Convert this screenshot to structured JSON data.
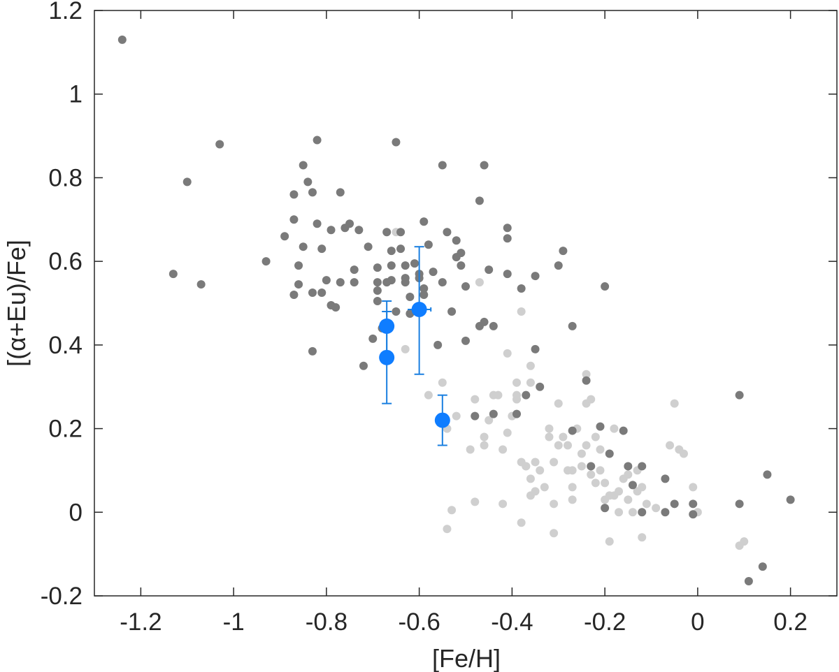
{
  "chart_data": {
    "type": "scatter",
    "xlabel": "[Fe/H]",
    "ylabel": "[(α+Eu)/Fe]",
    "xlim": [
      -1.3,
      0.3
    ],
    "ylim": [
      -0.2,
      1.2
    ],
    "x_ticks": [
      -1.2,
      -1,
      -0.8,
      -0.6,
      -0.4,
      -0.2,
      0,
      0.2
    ],
    "x_tick_labels": [
      "-1.2",
      "-1",
      "-0.8",
      "-0.6",
      "-0.4",
      "-0.2",
      "0",
      "0.2"
    ],
    "y_ticks": [
      -0.2,
      0,
      0.2,
      0.4,
      0.6,
      0.8,
      1,
      1.2
    ],
    "y_tick_labels": [
      "-0.2",
      "0",
      "0.2",
      "0.4",
      "0.6",
      "0.8",
      "1",
      "1.2"
    ],
    "grid": false,
    "colors": {
      "dark_points": "#7a7a7a",
      "light_points": "#cfcfcf",
      "highlight": "#0f7dff",
      "errorbar": "#1a7fe0",
      "axis": "#262626"
    },
    "series": [
      {
        "color": "#7a7a7a",
        "x": [
          -1.24,
          -1.13,
          -1.1,
          -1.07,
          -1.03,
          -0.93,
          -0.89,
          -0.87,
          -0.87,
          -0.87,
          -0.86,
          -0.86,
          -0.85,
          -0.85,
          -0.84,
          -0.83,
          -0.83,
          -0.83,
          -0.82,
          -0.82,
          -0.81,
          -0.81,
          -0.8,
          -0.79,
          -0.79,
          -0.78,
          -0.77,
          -0.77,
          -0.76,
          -0.75,
          -0.74,
          -0.74,
          -0.73,
          -0.72,
          -0.71,
          -0.7,
          -0.69,
          -0.69,
          -0.69,
          -0.69,
          -0.68,
          -0.67,
          -0.67,
          -0.66,
          -0.66,
          -0.66,
          -0.65,
          -0.65,
          -0.64,
          -0.64,
          -0.63,
          -0.63,
          -0.63,
          -0.62,
          -0.62,
          -0.61,
          -0.6,
          -0.6,
          -0.59,
          -0.59,
          -0.59,
          -0.58,
          -0.57,
          -0.56,
          -0.55,
          -0.55,
          -0.54,
          -0.53,
          -0.52,
          -0.52,
          -0.51,
          -0.51,
          -0.5,
          -0.5,
          -0.48,
          -0.47,
          -0.47,
          -0.46,
          -0.46,
          -0.45,
          -0.44,
          -0.44,
          -0.41,
          -0.41,
          -0.41,
          -0.39,
          -0.38,
          -0.37,
          -0.35,
          -0.35,
          -0.34,
          -0.3,
          -0.29,
          -0.27,
          -0.27,
          -0.24,
          -0.23,
          -0.21,
          -0.2,
          -0.2,
          -0.19,
          -0.16,
          -0.15,
          -0.14,
          -0.12,
          -0.12,
          -0.07,
          -0.07,
          -0.05,
          -0.01,
          -0.01,
          0.09,
          0.09,
          0.11,
          0.14,
          0.15,
          0.2
        ],
        "y": [
          1.13,
          0.57,
          0.79,
          0.545,
          0.88,
          0.6,
          0.66,
          0.52,
          0.7,
          0.76,
          0.545,
          0.59,
          0.635,
          0.83,
          0.79,
          0.385,
          0.765,
          0.525,
          0.89,
          0.69,
          0.63,
          0.525,
          0.555,
          0.495,
          0.675,
          0.49,
          0.55,
          0.765,
          0.68,
          0.69,
          0.58,
          0.55,
          0.675,
          0.35,
          0.635,
          0.415,
          0.53,
          0.505,
          0.55,
          0.585,
          0.44,
          0.55,
          0.67,
          0.625,
          0.555,
          0.59,
          0.885,
          0.48,
          0.63,
          0.67,
          0.55,
          0.56,
          0.59,
          0.515,
          0.475,
          0.595,
          0.57,
          0.56,
          0.52,
          0.535,
          0.695,
          0.64,
          0.575,
          0.4,
          0.83,
          0.55,
          0.67,
          0.48,
          0.65,
          0.61,
          0.59,
          0.62,
          0.54,
          0.41,
          0.23,
          0.445,
          0.745,
          0.455,
          0.83,
          0.58,
          0.445,
          0.235,
          0.68,
          0.655,
          0.57,
          0.235,
          0.535,
          0.28,
          0.565,
          0.39,
          0.3,
          0.59,
          0.625,
          0.195,
          0.445,
          0.315,
          0.11,
          0.205,
          0.01,
          0.54,
          0.14,
          0.195,
          0.11,
          0.065,
          0.11,
          0.0,
          0.08,
          0.0,
          0.02,
          -0.005,
          0.02,
          0.28,
          0.02,
          -0.165,
          -0.13,
          0.09,
          0.03
        ]
      },
      {
        "color": "#cfcfcf",
        "x": [
          -0.65,
          -0.63,
          -0.58,
          -0.55,
          -0.54,
          -0.54,
          -0.53,
          -0.52,
          -0.49,
          -0.48,
          -0.48,
          -0.47,
          -0.46,
          -0.46,
          -0.45,
          -0.44,
          -0.43,
          -0.42,
          -0.42,
          -0.41,
          -0.41,
          -0.4,
          -0.39,
          -0.39,
          -0.39,
          -0.38,
          -0.38,
          -0.38,
          -0.37,
          -0.37,
          -0.36,
          -0.36,
          -0.36,
          -0.36,
          -0.35,
          -0.35,
          -0.34,
          -0.33,
          -0.32,
          -0.32,
          -0.31,
          -0.31,
          -0.31,
          -0.3,
          -0.3,
          -0.29,
          -0.28,
          -0.28,
          -0.27,
          -0.27,
          -0.27,
          -0.26,
          -0.25,
          -0.25,
          -0.24,
          -0.24,
          -0.24,
          -0.23,
          -0.23,
          -0.22,
          -0.22,
          -0.21,
          -0.21,
          -0.2,
          -0.2,
          -0.19,
          -0.19,
          -0.18,
          -0.18,
          -0.17,
          -0.17,
          -0.16,
          -0.15,
          -0.15,
          -0.14,
          -0.13,
          -0.13,
          -0.12,
          -0.12,
          -0.11,
          -0.09,
          -0.06,
          -0.05,
          -0.04,
          -0.03,
          -0.01,
          0.0,
          0.09,
          0.1
        ],
        "y": [
          0.67,
          0.39,
          0.28,
          0.31,
          0.2,
          -0.04,
          0.005,
          0.23,
          0.15,
          0.27,
          0.025,
          0.55,
          0.18,
          0.16,
          0.22,
          0.28,
          0.28,
          0.15,
          0.02,
          0.38,
          0.19,
          0.23,
          0.31,
          0.28,
          0.27,
          0.12,
          0.48,
          -0.025,
          0.11,
          0.11,
          0.08,
          0.04,
          0.35,
          0.31,
          0.12,
          0.05,
          0.1,
          0.06,
          0.2,
          0.18,
          0.02,
          0.12,
          -0.05,
          0.26,
          0.16,
          0.18,
          0.16,
          0.1,
          0.1,
          0.06,
          0.03,
          0.2,
          0.14,
          0.11,
          0.16,
          0.26,
          0.33,
          0.27,
          0.09,
          0.18,
          0.07,
          0.15,
          0.1,
          0.07,
          0.03,
          0.04,
          -0.07,
          0.2,
          0.04,
          0.0,
          0.05,
          0.08,
          0.09,
          0.03,
          0.0,
          0.1,
          0.05,
          0.06,
          -0.06,
          0.02,
          0.01,
          0.16,
          0.26,
          0.15,
          0.14,
          0.06,
          0.0,
          -0.08,
          -0.07
        ]
      },
      {
        "color": "#0f7dff",
        "x": [
          -0.67,
          -0.67,
          -0.6,
          -0.55
        ],
        "y": [
          0.445,
          0.37,
          0.485,
          0.22
        ],
        "y_err_low": [
          0.075,
          0.11,
          0.155,
          0.06
        ],
        "y_err_high": [
          0.06,
          0.11,
          0.15,
          0.06
        ],
        "x_err": [
          0.012,
          0.012,
          0.025,
          0.012
        ]
      }
    ]
  }
}
